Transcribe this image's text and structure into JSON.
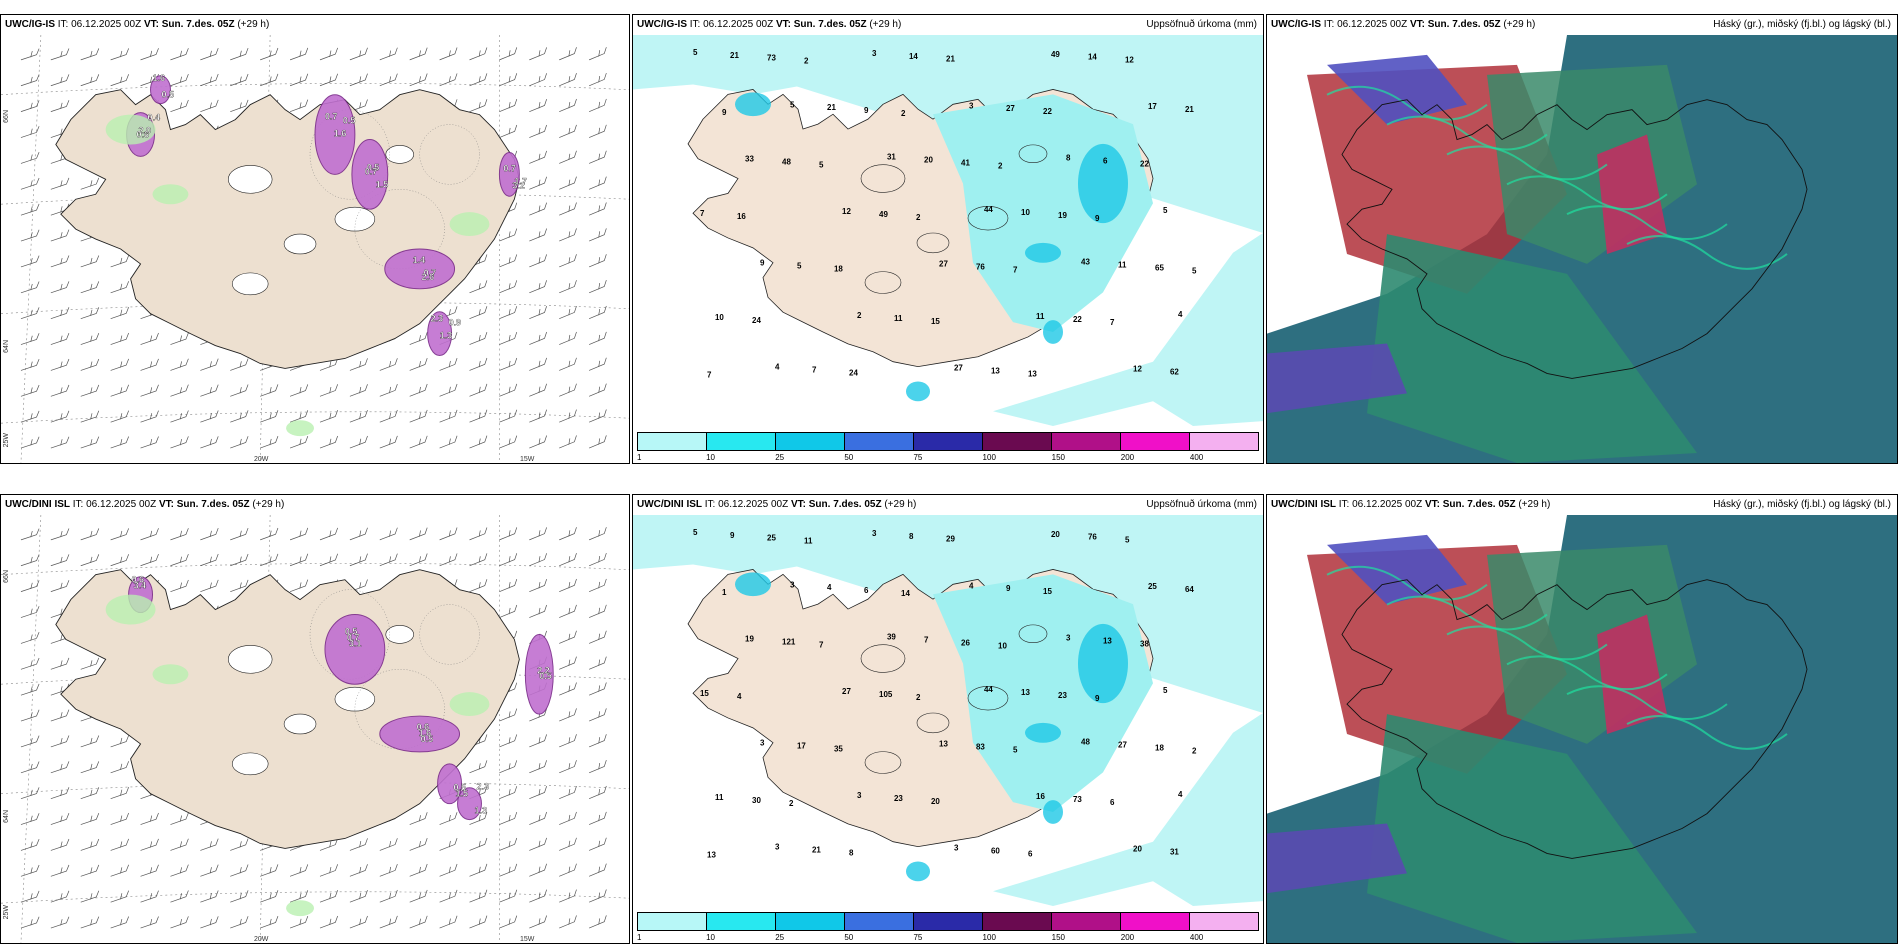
{
  "rows": [
    {
      "model": "UWC/IG-IS",
      "it_label": "IT:",
      "it_value": "06.12.2025 00Z",
      "vt_label": "VT:",
      "vt_value": "Sun. 7.des. 05Z",
      "lead": "(+29 h)"
    },
    {
      "model": "UWC/DINI ISL",
      "it_label": "IT:",
      "it_value": "06.12.2025 00Z",
      "vt_label": "VT:",
      "vt_value": "Sun. 7.des. 05Z",
      "lead": "(+29 h)"
    }
  ],
  "panel_titles": {
    "precip": "Uppsöfnuð úrkoma (mm)",
    "clouds": "Háský (gr.), miðský (fj.bl.) og lágský (bl.)"
  },
  "axis_labels": {
    "lon_20w": "20W",
    "lon_15w": "15W",
    "lat_66n": "66N",
    "lat_64n": "64N",
    "corner_25w": "25W"
  },
  "colorbar": {
    "ticks": [
      "1",
      "10",
      "25",
      "50",
      "75",
      "100",
      "150",
      "200",
      "400"
    ],
    "colors": [
      "#b7f7f7",
      "#28e8f0",
      "#10c8e8",
      "#3a6fe0",
      "#2a2aa8",
      "#6a0a50",
      "#b01088",
      "#f010c8",
      "#f4b0f0"
    ]
  },
  "precip_values_top": [
    "5",
    "5",
    "31",
    "44",
    "43",
    "4",
    "4",
    "3",
    "3",
    "8",
    "5",
    "9",
    "2",
    "27",
    "49",
    "17",
    "33",
    "12",
    "27",
    "11",
    "12",
    "21",
    "21",
    "20",
    "10",
    "11",
    "10",
    "7",
    "14",
    "27",
    "6",
    "7",
    "5",
    "11",
    "13",
    "14",
    "21",
    "48",
    "49",
    "76",
    "22",
    "62",
    "73",
    "9",
    "41",
    "19",
    "65",
    "24",
    "24",
    "21",
    "22",
    "22",
    "16",
    "18",
    "15",
    "13",
    "12",
    "9",
    "5",
    "2",
    "7",
    "7",
    "7",
    "2",
    "2",
    "2",
    "9",
    "5"
  ],
  "precip_values_bottom": [
    "5",
    "3",
    "39",
    "44",
    "48",
    "4",
    "3",
    "3",
    "4",
    "3",
    "5",
    "3",
    "3",
    "3",
    "20",
    "25",
    "19",
    "27",
    "13",
    "16",
    "20",
    "9",
    "4",
    "7",
    "13",
    "27",
    "11",
    "21",
    "8",
    "9",
    "13",
    "15",
    "17",
    "23",
    "60",
    "76",
    "64",
    "121",
    "105",
    "83",
    "73",
    "31",
    "25",
    "6",
    "26",
    "23",
    "18",
    "30",
    "8",
    "29",
    "15",
    "38",
    "4",
    "35",
    "20",
    "6",
    "5",
    "1",
    "7",
    "2",
    "5",
    "6",
    "13",
    "11",
    "14",
    "10",
    "9",
    "2",
    "2"
  ],
  "wind_values_top": [
    "0.7",
    "0.5",
    "0.7",
    "2.3",
    "2.0",
    "1.7",
    "1.6",
    "1.6",
    "1.5",
    "1.4",
    "1.3",
    "0.4",
    "0.7",
    "0.5",
    "0.5",
    "0.7",
    "2.6",
    "0.9",
    "0.6",
    "3.2"
  ],
  "wind_values_bottom": [
    "0.5",
    "0.6",
    "0.5",
    "0.6",
    "2.2",
    "1.3",
    "0.7",
    "1.6",
    "1.5",
    "3.4",
    "0.5",
    "2.3",
    "3.1",
    "0.5"
  ]
}
